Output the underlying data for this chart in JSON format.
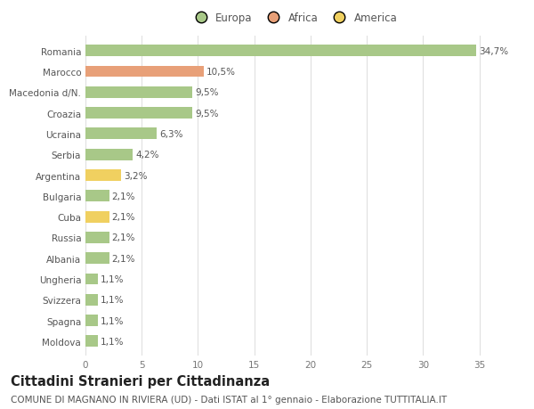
{
  "categories": [
    "Romania",
    "Marocco",
    "Macedonia d/N.",
    "Croazia",
    "Ucraina",
    "Serbia",
    "Argentina",
    "Bulgaria",
    "Cuba",
    "Russia",
    "Albania",
    "Ungheria",
    "Svizzera",
    "Spagna",
    "Moldova"
  ],
  "values": [
    34.7,
    10.5,
    9.5,
    9.5,
    6.3,
    4.2,
    3.2,
    2.1,
    2.1,
    2.1,
    2.1,
    1.1,
    1.1,
    1.1,
    1.1
  ],
  "labels": [
    "34,7%",
    "10,5%",
    "9,5%",
    "9,5%",
    "6,3%",
    "4,2%",
    "3,2%",
    "2,1%",
    "2,1%",
    "2,1%",
    "2,1%",
    "1,1%",
    "1,1%",
    "1,1%",
    "1,1%"
  ],
  "colors": [
    "#a8c888",
    "#e8a078",
    "#a8c888",
    "#a8c888",
    "#a8c888",
    "#a8c888",
    "#f0d060",
    "#a8c888",
    "#f0d060",
    "#a8c888",
    "#a8c888",
    "#a8c888",
    "#a8c888",
    "#a8c888",
    "#a8c888"
  ],
  "legend_labels": [
    "Europa",
    "Africa",
    "America"
  ],
  "legend_colors": [
    "#a8c888",
    "#e8a078",
    "#f0d060"
  ],
  "title": "Cittadini Stranieri per Cittadinanza",
  "subtitle": "COMUNE DI MAGNANO IN RIVIERA (UD) - Dati ISTAT al 1° gennaio - Elaborazione TUTTITALIA.IT",
  "xlim": [
    0,
    37
  ],
  "xticks": [
    0,
    5,
    10,
    15,
    20,
    25,
    30,
    35
  ],
  "background_color": "#ffffff",
  "grid_color": "#e0e0e0",
  "bar_height": 0.55,
  "label_fontsize": 7.5,
  "title_fontsize": 10.5,
  "subtitle_fontsize": 7.5,
  "tick_fontsize": 7.5,
  "legend_fontsize": 8.5
}
